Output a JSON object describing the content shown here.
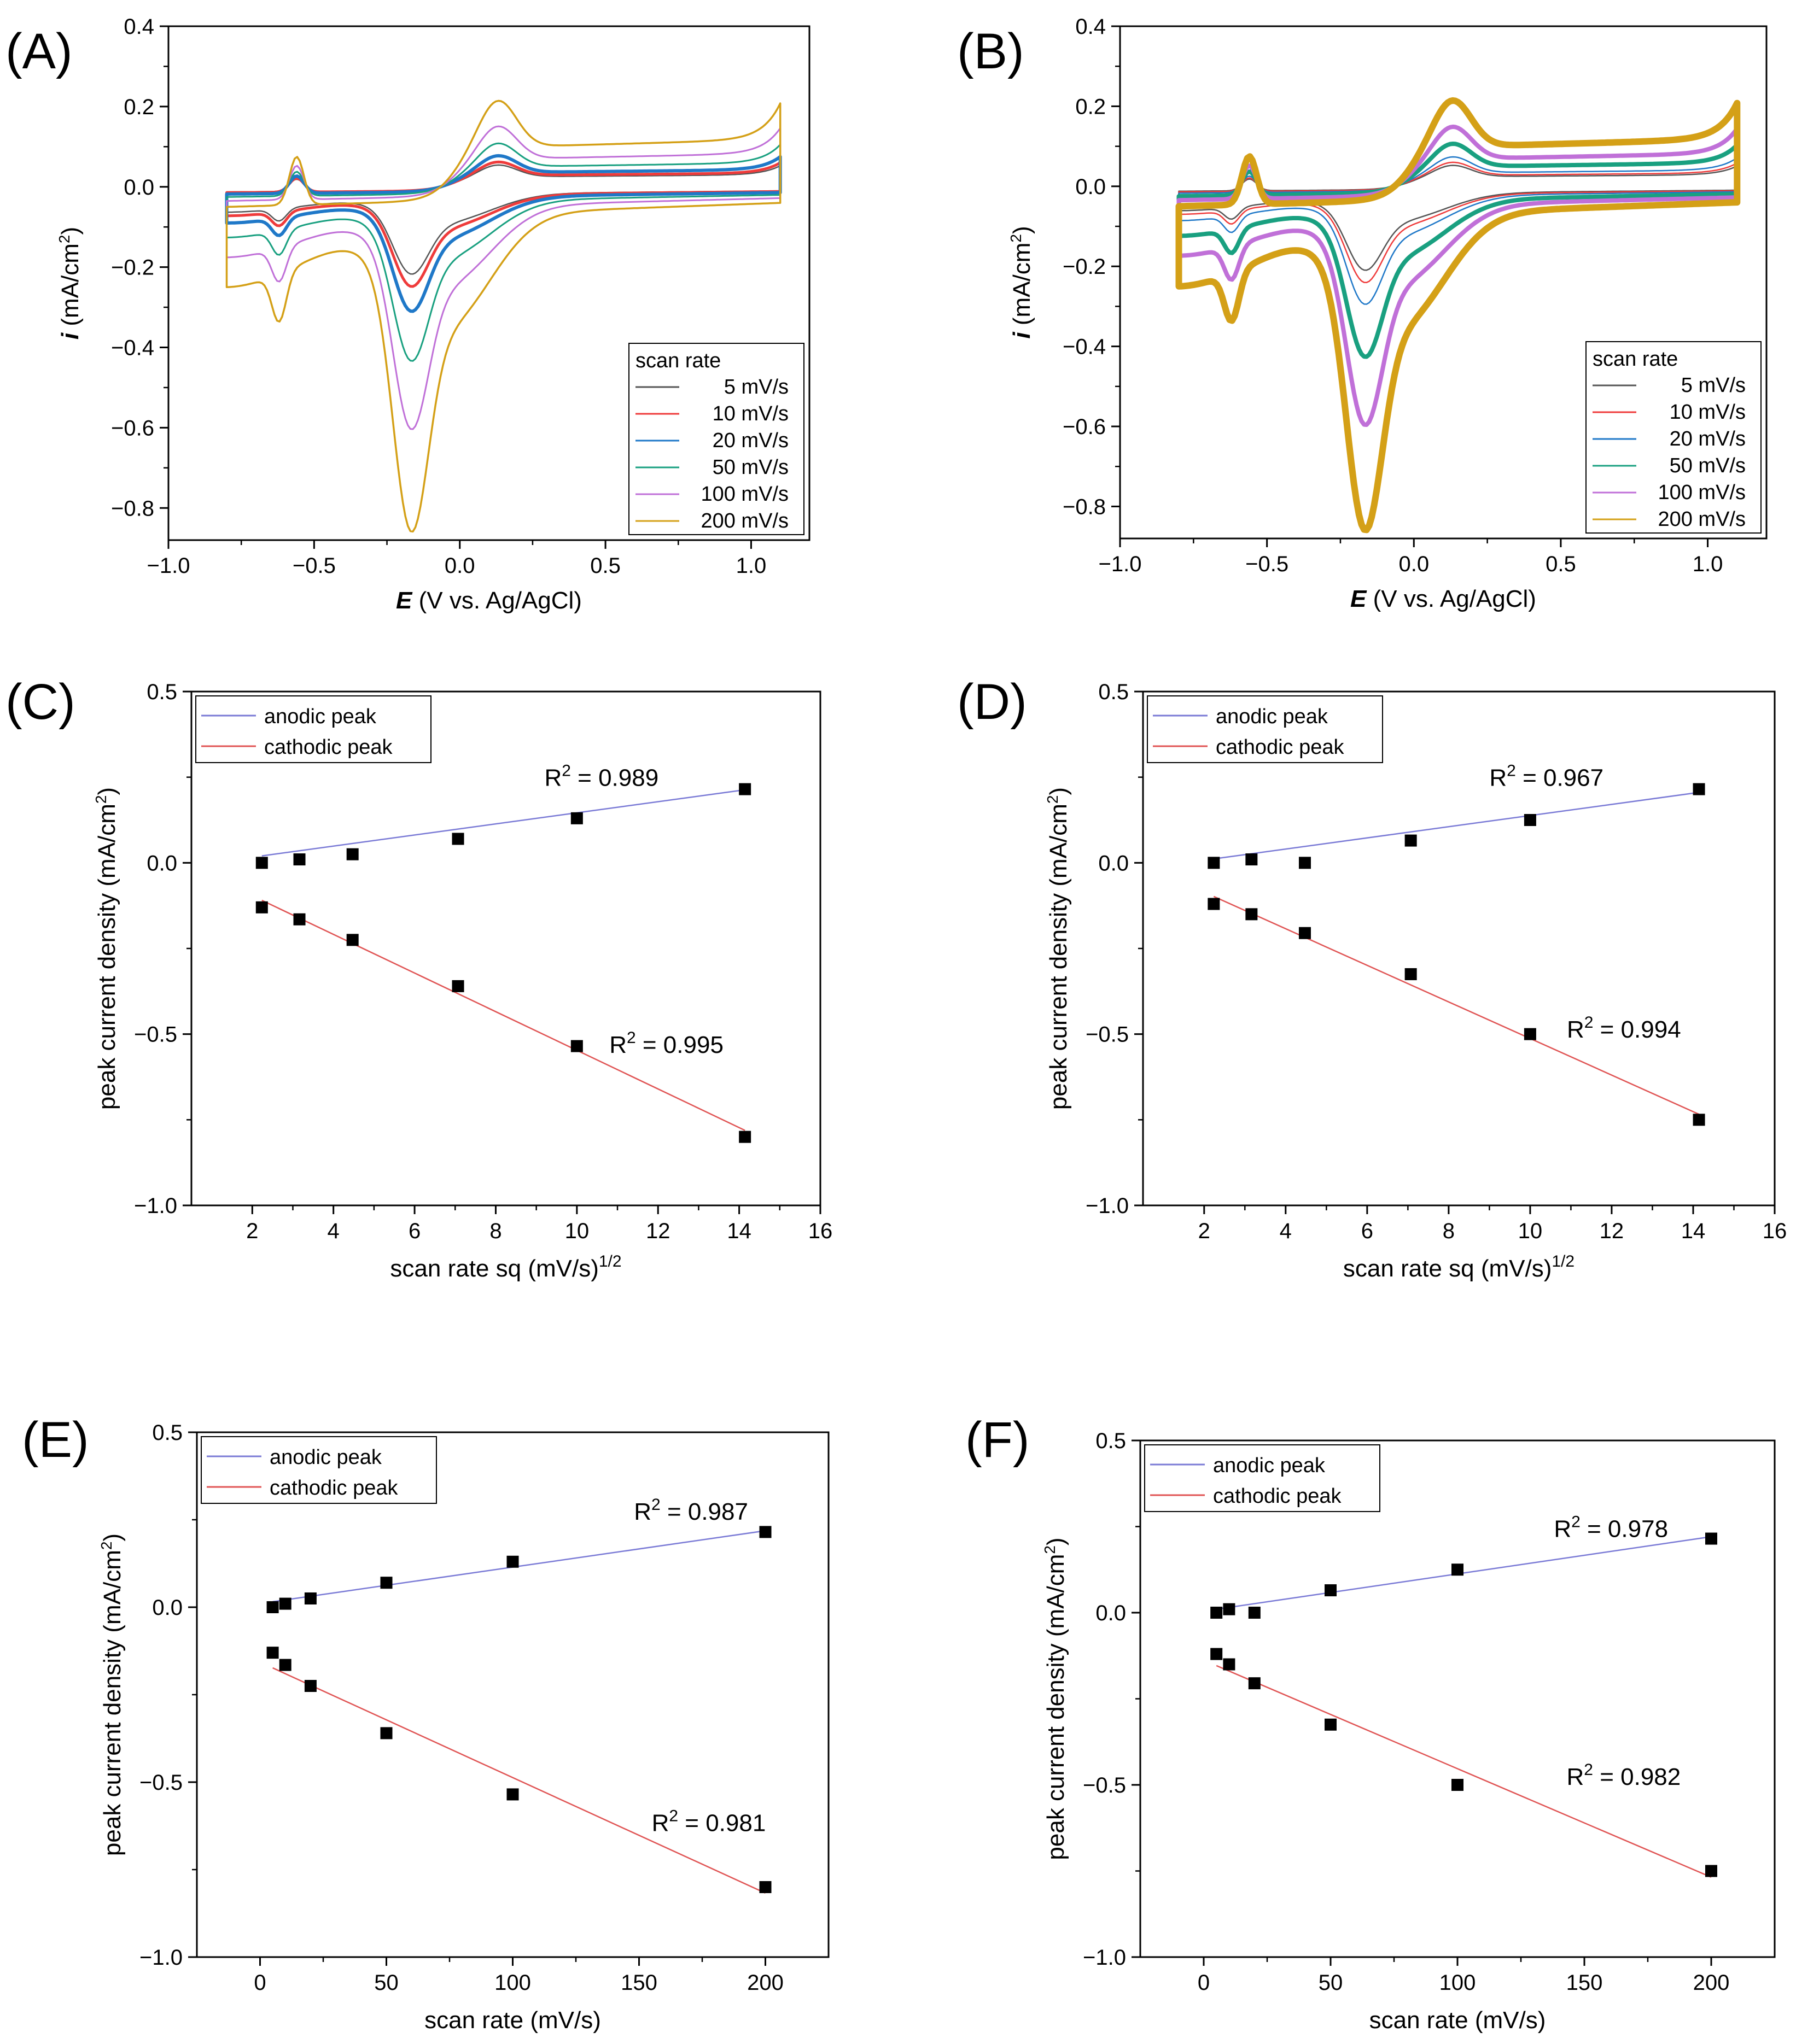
{
  "figure": {
    "panels": [
      "A",
      "B",
      "C",
      "D",
      "E",
      "F"
    ]
  },
  "chart_data": [
    {
      "panel": "A",
      "panel_label": "(A)",
      "type": "line",
      "title": "",
      "xlabel_italic": "E",
      "xlabel_rest": " (V vs. Ag/AgCl)",
      "ylabel_italic": "i",
      "ylabel_rest": " (mA/cm",
      "ylabel_sup": "2",
      "ylabel_close": ")",
      "xlim": [
        -1.0,
        1.2
      ],
      "ylim": [
        -0.88,
        0.4
      ],
      "xticks": [
        -1.0,
        -0.5,
        0.0,
        0.5,
        1.0
      ],
      "xtick_labels": [
        "−1.0",
        "−0.5",
        "0.0",
        "0.5",
        "1.0"
      ],
      "yticks": [
        -0.8,
        -0.6,
        -0.4,
        -0.2,
        0.0,
        0.2,
        0.4
      ],
      "ytick_labels": [
        "−0.8",
        "−0.6",
        "−0.4",
        "−0.2",
        "0.0",
        "0.2",
        "0.4"
      ],
      "legend_title": "scan rate",
      "legend_position": "bottom-right",
      "series": [
        {
          "name": "5 mV/s",
          "color": "#555555",
          "scale": 0.17,
          "width": 2.5
        },
        {
          "name": "10 mV/s",
          "color": "#ef3b3b",
          "scale": 0.21,
          "width": 5
        },
        {
          "name": "20 mV/s",
          "color": "#1f78c8",
          "scale": 0.29,
          "width": 6
        },
        {
          "name": "50 mV/s",
          "color": "#19a080",
          "scale": 0.45,
          "width": 3
        },
        {
          "name": "100 mV/s",
          "color": "#c070d8",
          "scale": 0.67,
          "width": 3
        },
        {
          "name": "200 mV/s",
          "color": "#d4a017",
          "scale": 1.0,
          "width": 3.5
        }
      ]
    },
    {
      "panel": "B",
      "panel_label": "(B)",
      "type": "line",
      "title": "",
      "xlabel_italic": "E",
      "xlabel_rest": " (V vs. Ag/AgCl)",
      "ylabel_italic": "i",
      "ylabel_rest": " (mA/cm",
      "ylabel_sup": "2",
      "ylabel_close": ")",
      "xlim": [
        -1.0,
        1.2
      ],
      "ylim": [
        -0.88,
        0.4
      ],
      "xticks": [
        -1.0,
        -0.5,
        0.0,
        0.5,
        1.0
      ],
      "xtick_labels": [
        "−1.0",
        "−0.5",
        "0.0",
        "0.5",
        "1.0"
      ],
      "yticks": [
        -0.8,
        -0.6,
        -0.4,
        -0.2,
        0.0,
        0.2,
        0.4
      ],
      "ytick_labels": [
        "−0.8",
        "−0.6",
        "−0.4",
        "−0.2",
        "0.0",
        "0.2",
        "0.4"
      ],
      "legend_title": "scan rate",
      "legend_position": "bottom-right",
      "series": [
        {
          "name": "5 mV/s",
          "color": "#555555",
          "scale": 0.16,
          "width": 2.5
        },
        {
          "name": "10 mV/s",
          "color": "#ef3b3b",
          "scale": 0.2,
          "width": 2.5
        },
        {
          "name": "20 mV/s",
          "color": "#1f78c8",
          "scale": 0.27,
          "width": 2.5
        },
        {
          "name": "50 mV/s",
          "color": "#19a080",
          "scale": 0.44,
          "width": 8
        },
        {
          "name": "100 mV/s",
          "color": "#c070d8",
          "scale": 0.66,
          "width": 8
        },
        {
          "name": "200 mV/s",
          "color": "#d4a017",
          "scale": 1.0,
          "width": 12
        }
      ]
    },
    {
      "panel": "C",
      "panel_label": "(C)",
      "type": "scatter",
      "xlabel": "scan rate sq (mV/s)",
      "xlabel_sup": "1/2",
      "ylabel": "peak current density (mA/cm",
      "ylabel_sup": "2",
      "ylabel_close": ")",
      "xlim": [
        0.5,
        16
      ],
      "ylim": [
        -1.0,
        0.5
      ],
      "xticks": [
        2,
        4,
        6,
        8,
        10,
        12,
        14,
        16
      ],
      "xtick_labels": [
        "2",
        "4",
        "6",
        "8",
        "10",
        "12",
        "14",
        "16"
      ],
      "yticks": [
        -1.0,
        -0.5,
        0.0,
        0.5
      ],
      "ytick_labels": [
        "−1.0",
        "−0.5",
        "0.0",
        "0.5"
      ],
      "legend_position": "top-left",
      "x": [
        2.236,
        3.162,
        4.472,
        7.071,
        10.0,
        14.142
      ],
      "series": [
        {
          "name": "anodic peak",
          "color": "#7b7bd6",
          "values": [
            0.0,
            0.01,
            0.025,
            0.07,
            0.13,
            0.215
          ],
          "fit": [
            -0.016,
            0.0162
          ],
          "r2_label": "R",
          "r2_sup": "2",
          "r2_value": " = 0.989",
          "r2_x": 9.2,
          "r2_y": 0.225
        },
        {
          "name": "cathodic peak",
          "color": "#e05555",
          "values": [
            -0.13,
            -0.165,
            -0.225,
            -0.36,
            -0.535,
            -0.8
          ],
          "fit": [
            0.0167,
            -0.0564
          ],
          "r2_label": "R",
          "r2_sup": "2",
          "r2_value": " = 0.995",
          "r2_x": 10.8,
          "r2_y": -0.555
        }
      ]
    },
    {
      "panel": "D",
      "panel_label": "(D)",
      "type": "scatter",
      "xlabel": "scan rate sq (mV/s)",
      "xlabel_sup": "1/2",
      "ylabel": "peak current density (mA/cm",
      "ylabel_sup": "2",
      "ylabel_close": ")",
      "xlim": [
        0.5,
        16
      ],
      "ylim": [
        -1.0,
        0.5
      ],
      "xticks": [
        2,
        4,
        6,
        8,
        10,
        12,
        14,
        16
      ],
      "xtick_labels": [
        "2",
        "4",
        "6",
        "8",
        "10",
        "12",
        "14",
        "16"
      ],
      "yticks": [
        -1.0,
        -0.5,
        0.0,
        0.5
      ],
      "ytick_labels": [
        "−1.0",
        "−0.5",
        "0.0",
        "0.5"
      ],
      "legend_position": "top-left",
      "x": [
        2.236,
        3.162,
        4.472,
        7.071,
        10.0,
        14.142
      ],
      "series": [
        {
          "name": "anodic peak",
          "color": "#7b7bd6",
          "values": [
            0.0,
            0.01,
            0.0,
            0.065,
            0.125,
            0.215
          ],
          "fit": [
            -0.025,
            0.0163
          ],
          "r2_label": "R",
          "r2_sup": "2",
          "r2_value": " = 0.967",
          "r2_x": 9.0,
          "r2_y": 0.225
        },
        {
          "name": "cathodic peak",
          "color": "#e05555",
          "values": [
            -0.12,
            -0.15,
            -0.205,
            -0.325,
            -0.5,
            -0.75
          ],
          "fit": [
            0.0212,
            -0.0534
          ],
          "r2_label": "R",
          "r2_sup": "2",
          "r2_value": " = 0.994",
          "r2_x": 10.9,
          "r2_y": -0.51
        }
      ]
    },
    {
      "panel": "E",
      "panel_label": "(E)",
      "type": "scatter",
      "xlabel": "scan rate (mV/s)",
      "xlabel_sup": "",
      "ylabel": "peak current density (mA/cm",
      "ylabel_sup": "2",
      "ylabel_close": ")",
      "xlim": [
        -25,
        225
      ],
      "ylim": [
        -1.0,
        0.5
      ],
      "xticks": [
        0,
        50,
        100,
        150,
        200
      ],
      "xtick_labels": [
        "0",
        "50",
        "100",
        "150",
        "200"
      ],
      "yticks": [
        -1.0,
        -0.5,
        0.0,
        0.5
      ],
      "ytick_labels": [
        "−1.0",
        "−0.5",
        "0.0",
        "0.5"
      ],
      "legend_position": "top-left",
      "x": [
        5,
        10,
        20,
        50,
        100,
        200
      ],
      "series": [
        {
          "name": "anodic peak",
          "color": "#7b7bd6",
          "values": [
            0.0,
            0.01,
            0.025,
            0.07,
            0.13,
            0.215
          ],
          "fit": [
            0.0106,
            0.00104
          ],
          "r2_label": "R",
          "r2_sup": "2",
          "r2_value": " = 0.987",
          "r2_x": 148,
          "r2_y": 0.25
        },
        {
          "name": "cathodic peak",
          "color": "#e05555",
          "values": [
            -0.13,
            -0.165,
            -0.225,
            -0.36,
            -0.535,
            -0.8
          ],
          "fit": [
            -0.157,
            -0.0033
          ],
          "r2_label": "R",
          "r2_sup": "2",
          "r2_value": " = 0.981",
          "r2_x": 155,
          "r2_y": -0.64
        }
      ]
    },
    {
      "panel": "F",
      "panel_label": "(F)",
      "type": "scatter",
      "xlabel": "scan rate (mV/s)",
      "xlabel_sup": "",
      "ylabel": "peak current density (mA/cm",
      "ylabel_sup": "2",
      "ylabel_close": ")",
      "xlim": [
        -25,
        225
      ],
      "ylim": [
        -1.0,
        0.5
      ],
      "xticks": [
        0,
        50,
        100,
        150,
        200
      ],
      "xtick_labels": [
        "0",
        "50",
        "100",
        "150",
        "200"
      ],
      "yticks": [
        -1.0,
        -0.5,
        0.0,
        0.5
      ],
      "ytick_labels": [
        "−1.0",
        "−0.5",
        "0.0",
        "0.5"
      ],
      "legend_position": "top-left",
      "x": [
        5,
        10,
        20,
        50,
        100,
        200
      ],
      "series": [
        {
          "name": "anodic peak",
          "color": "#7b7bd6",
          "values": [
            0.0,
            0.01,
            0.0,
            0.065,
            0.125,
            0.215
          ],
          "fit": [
            0.0046,
            0.00108
          ],
          "r2_label": "R",
          "r2_sup": "2",
          "r2_value": " = 0.978",
          "r2_x": 138,
          "r2_y": 0.22
        },
        {
          "name": "cathodic peak",
          "color": "#e05555",
          "values": [
            -0.12,
            -0.15,
            -0.205,
            -0.325,
            -0.5,
            -0.75
          ],
          "fit": [
            -0.138,
            -0.00315
          ],
          "r2_label": "R",
          "r2_sup": "2",
          "r2_value": " = 0.982",
          "r2_x": 143,
          "r2_y": -0.5
        }
      ]
    }
  ]
}
